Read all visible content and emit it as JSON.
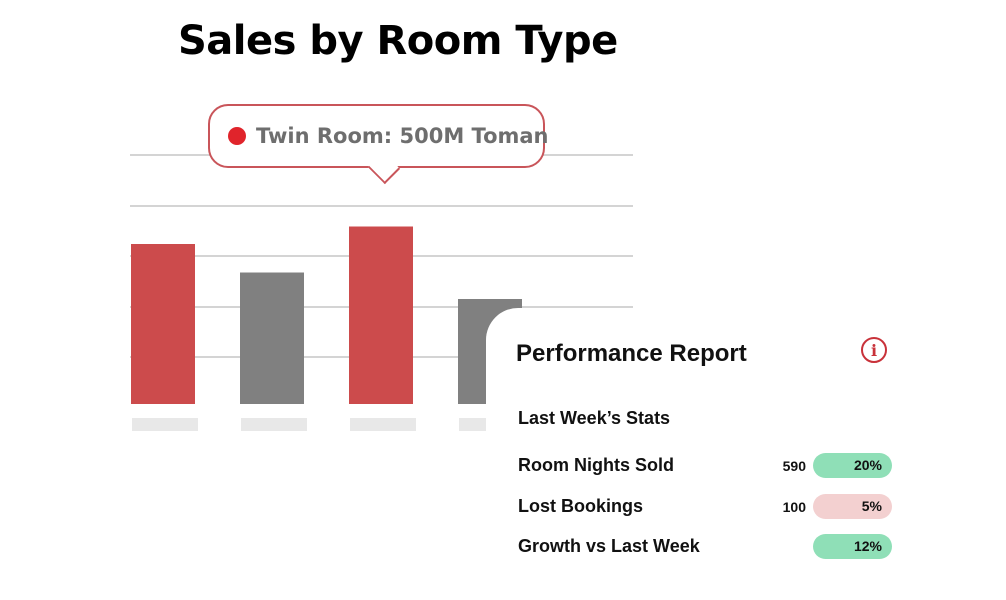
{
  "chart_data": {
    "type": "bar",
    "title": "Sales by Room Type",
    "categories": [
      "",
      "",
      "",
      ""
    ],
    "values": [
      320,
      263,
      355,
      210
    ],
    "bar_colors": [
      "#cc4b4c",
      "#808080",
      "#cc4b4c",
      "#808080"
    ],
    "grid": true,
    "ylim": [
      0,
      490
    ],
    "tooltip": {
      "text": "Twin Room: 500M Toman",
      "dot_color": "#e0242b"
    }
  },
  "report": {
    "title": "Performance Report",
    "info_icon": "info-icon",
    "subtitle": "Last Week’s Stats",
    "rows": [
      {
        "label": "Room Nights Sold",
        "value": "590",
        "badge": "20%",
        "badge_color": "#8fdfb7"
      },
      {
        "label": "Lost Bookings",
        "value": "100",
        "badge": "5%",
        "badge_color": "#f3d0d0"
      },
      {
        "label": "Growth vs Last Week",
        "value": "",
        "badge": "12%",
        "badge_color": "#8fdfb7"
      }
    ]
  }
}
